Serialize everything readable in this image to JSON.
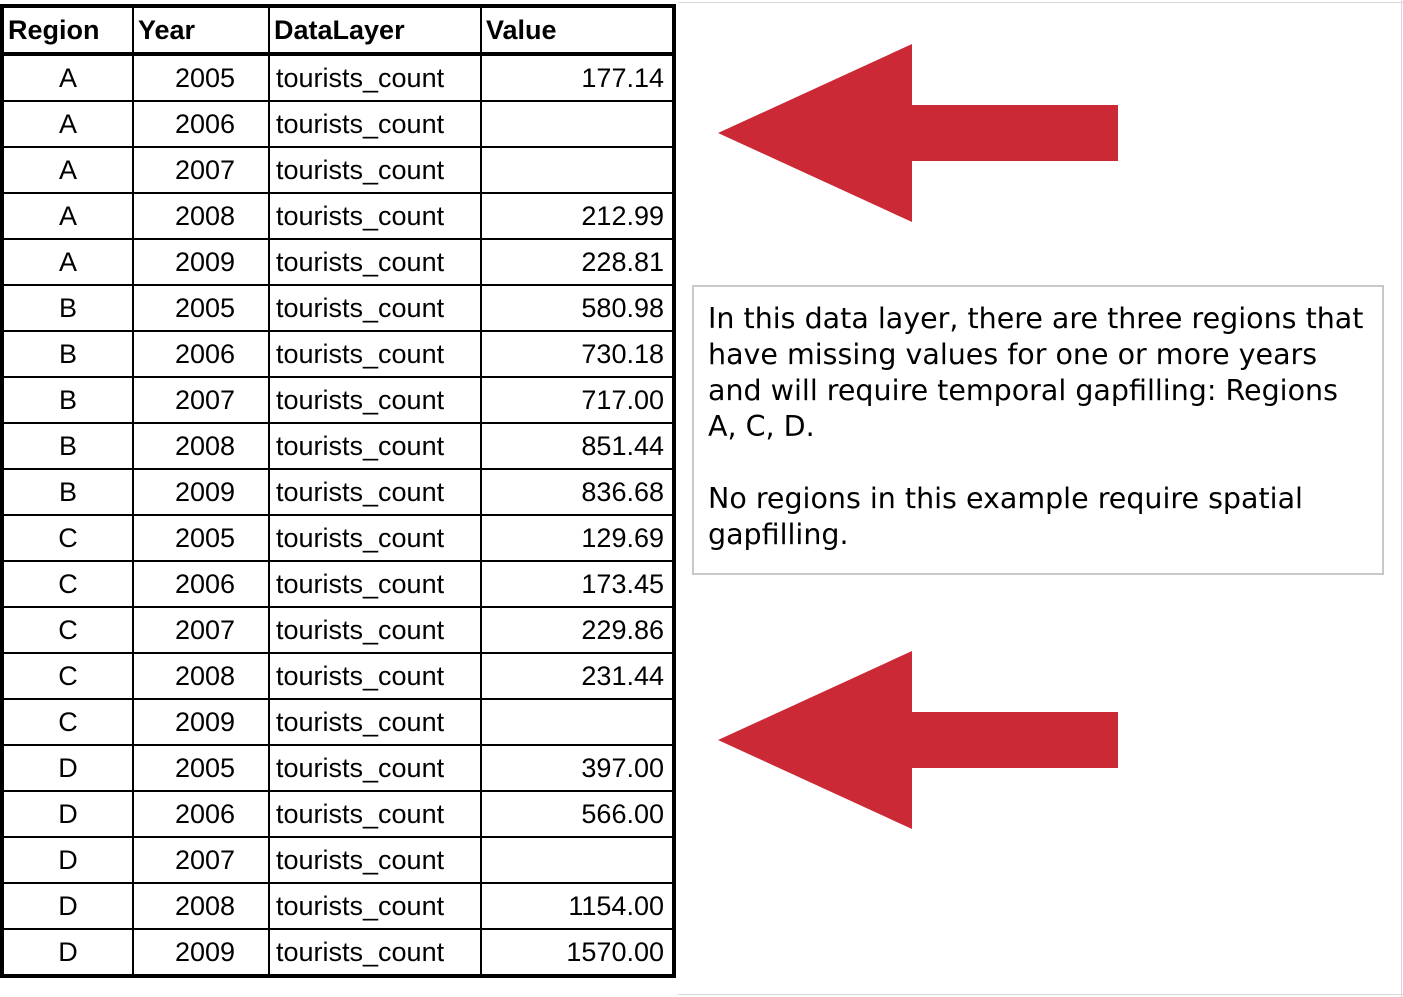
{
  "table": {
    "headers": {
      "region": "Region",
      "year": "Year",
      "datalayer": "DataLayer",
      "value": "Value"
    },
    "rows": [
      {
        "region": "A",
        "year": "2005",
        "datalayer": "tourists_count",
        "value": "177.14"
      },
      {
        "region": "A",
        "year": "2006",
        "datalayer": "tourists_count",
        "value": ""
      },
      {
        "region": "A",
        "year": "2007",
        "datalayer": "tourists_count",
        "value": ""
      },
      {
        "region": "A",
        "year": "2008",
        "datalayer": "tourists_count",
        "value": "212.99"
      },
      {
        "region": "A",
        "year": "2009",
        "datalayer": "tourists_count",
        "value": "228.81"
      },
      {
        "region": "B",
        "year": "2005",
        "datalayer": "tourists_count",
        "value": "580.98"
      },
      {
        "region": "B",
        "year": "2006",
        "datalayer": "tourists_count",
        "value": "730.18"
      },
      {
        "region": "B",
        "year": "2007",
        "datalayer": "tourists_count",
        "value": "717.00"
      },
      {
        "region": "B",
        "year": "2008",
        "datalayer": "tourists_count",
        "value": "851.44"
      },
      {
        "region": "B",
        "year": "2009",
        "datalayer": "tourists_count",
        "value": "836.68"
      },
      {
        "region": "C",
        "year": "2005",
        "datalayer": "tourists_count",
        "value": "129.69"
      },
      {
        "region": "C",
        "year": "2006",
        "datalayer": "tourists_count",
        "value": "173.45"
      },
      {
        "region": "C",
        "year": "2007",
        "datalayer": "tourists_count",
        "value": "229.86"
      },
      {
        "region": "C",
        "year": "2008",
        "datalayer": "tourists_count",
        "value": "231.44"
      },
      {
        "region": "C",
        "year": "2009",
        "datalayer": "tourists_count",
        "value": ""
      },
      {
        "region": "D",
        "year": "2005",
        "datalayer": "tourists_count",
        "value": "397.00"
      },
      {
        "region": "D",
        "year": "2006",
        "datalayer": "tourists_count",
        "value": "566.00"
      },
      {
        "region": "D",
        "year": "2007",
        "datalayer": "tourists_count",
        "value": ""
      },
      {
        "region": "D",
        "year": "2008",
        "datalayer": "tourists_count",
        "value": "1154.00"
      },
      {
        "region": "D",
        "year": "2009",
        "datalayer": "tourists_count",
        "value": "1570.00"
      }
    ]
  },
  "note": {
    "paragraph1": "In this data layer, there are three regions that have missing values for one or more years and will require temporal gapfilling: Regions A, C, D.",
    "paragraph2": "No regions in this example require spatial gapfilling."
  },
  "arrows": {
    "color": "#cc2936",
    "icon": "left-arrow-icon"
  }
}
